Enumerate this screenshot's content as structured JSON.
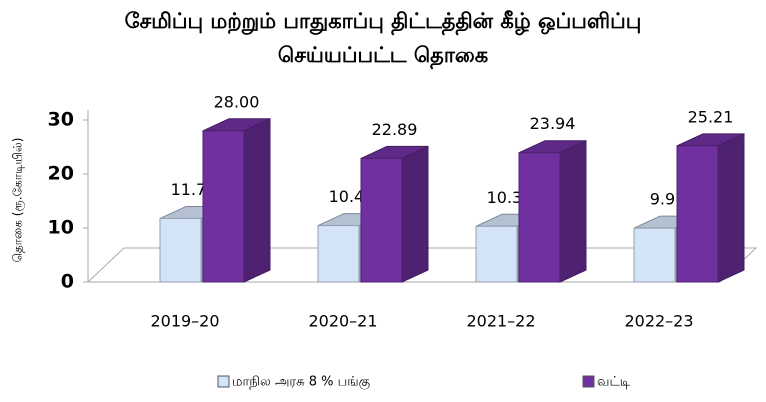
{
  "chart_data": {
    "type": "bar3d",
    "title": "சேமிப்பு மற்றும் பாதுகாப்பு திட்டத்தின் கீழ் ஒப்பளிப்பு செய்யப்பட்ட தொகை",
    "y_label": "தொகை (ரூ.கோடியில்)",
    "categories": [
      "2019–20",
      "2020–21",
      "2021–22",
      "2022–23"
    ],
    "series": [
      {
        "name": "மாநில அரசு 8 % பங்கு",
        "color": "#d3e3f8",
        "values": [
          11.77,
          10.45,
          10.32,
          9.97
        ]
      },
      {
        "name": "வட்டி",
        "color": "#7030a0",
        "values": [
          28.0,
          22.89,
          23.94,
          25.21
        ],
        "value_labels": [
          "28.00",
          "22.89",
          "23.94",
          "25.21"
        ]
      }
    ],
    "ylim": [
      0,
      30
    ],
    "yticks": [
      0,
      10,
      20,
      30
    ]
  }
}
